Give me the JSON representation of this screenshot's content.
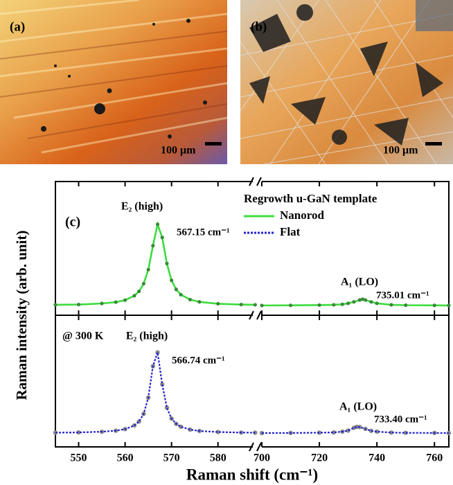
{
  "figure": {
    "panel_a": {
      "label": "(a)",
      "scale_bar": "100 μm"
    },
    "panel_b": {
      "label": "(b)",
      "scale_bar": "100 μm"
    }
  },
  "chart_data": {
    "type": "line",
    "label": "(c)",
    "x_label": "Raman shift (cm⁻¹)",
    "y_label": "Raman intensity (arb. unit)",
    "x_segments": [
      {
        "xlim": [
          545,
          587.5
        ],
        "xticks": [
          550,
          560,
          570,
          580
        ]
      },
      {
        "xlim": [
          700,
          765
        ],
        "xticks": [
          700,
          720,
          740,
          760
        ]
      }
    ],
    "legend": {
      "title": "Regrowth u-GaN template",
      "position": "upper right"
    },
    "panels": [
      {
        "ylim": [
          0,
          1
        ],
        "series": [
          {
            "name": "Nanorod",
            "color": "#3ddc3d",
            "marker_color": "#3a8a3a",
            "line_style": "solid",
            "x": [
              545,
              550,
              555,
              558,
              560,
              562,
              563,
              564,
              565,
              566,
              567,
              568,
              569,
              570,
              571,
              572,
              574,
              576,
              580,
              585,
              588,
              700,
              710,
              720,
              725,
              728,
              730,
              732,
              734,
              735,
              736,
              738,
              740,
              745,
              750,
              760,
              765
            ],
            "values": [
              0.078,
              0.08,
              0.088,
              0.098,
              0.113,
              0.146,
              0.179,
              0.236,
              0.341,
              0.52,
              0.68,
              0.582,
              0.387,
              0.261,
              0.193,
              0.154,
              0.117,
              0.1,
              0.086,
              0.08,
              0.078,
              0.073,
              0.074,
              0.076,
              0.078,
              0.082,
              0.089,
              0.1,
              0.114,
              0.12,
              0.114,
              0.1,
              0.089,
              0.078,
              0.075,
              0.074,
              0.073
            ]
          }
        ],
        "peaks": [
          {
            "name": "E₂ (high)",
            "shift": "567.15 cm⁻¹"
          },
          {
            "name": "A₁ (LO)",
            "shift": "735.01 cm⁻¹"
          }
        ]
      },
      {
        "ylim": [
          0,
          1
        ],
        "note": "@ 300 K",
        "series": [
          {
            "name": "Flat",
            "color": "#2222cc",
            "marker_color": "#8a8a8a",
            "line_style": "dotted",
            "x": [
              545,
              550,
              555,
              558,
              560,
              562,
              563,
              564,
              565,
              566,
              567,
              568,
              569,
              570,
              571,
              572,
              574,
              576,
              580,
              585,
              588,
              700,
              710,
              720,
              725,
              728,
              730,
              732,
              733,
              734,
              736,
              738,
              740,
              745,
              750,
              760,
              765
            ],
            "values": [
              0.108,
              0.11,
              0.115,
              0.123,
              0.135,
              0.163,
              0.193,
              0.251,
              0.374,
              0.613,
              0.718,
              0.475,
              0.298,
              0.215,
              0.175,
              0.153,
              0.131,
              0.121,
              0.113,
              0.109,
              0.108,
              0.105,
              0.106,
              0.108,
              0.11,
              0.116,
              0.124,
              0.145,
              0.152,
              0.151,
              0.137,
              0.122,
              0.116,
              0.109,
              0.107,
              0.106,
              0.105
            ]
          }
        ],
        "peaks": [
          {
            "name": "E₂ (high)",
            "shift": "566.74 cm⁻¹"
          },
          {
            "name": "A₁ (LO)",
            "shift": "733.40 cm⁻¹"
          }
        ]
      }
    ]
  }
}
